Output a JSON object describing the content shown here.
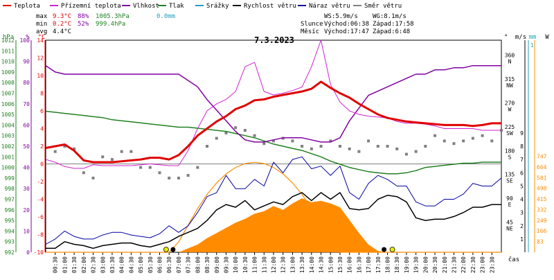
{
  "chart_data": {
    "type": "line",
    "title": "7.3.2023",
    "legend": [
      {
        "label": "Teplota",
        "color": "#e00000"
      },
      {
        "label": "Přízemní teplota",
        "color": "#d020d0"
      },
      {
        "label": "Vlhkost",
        "color": "#8000a0"
      },
      {
        "label": "Tlak",
        "color": "#208020"
      },
      {
        "label": "Srážky",
        "color": "#20a0c0"
      },
      {
        "label": "Rychlost větru",
        "color": "#000000"
      },
      {
        "label": "Náraz větru",
        "color": "#0000a0"
      },
      {
        "label": "Směr větru",
        "color": "#808080"
      }
    ],
    "stats": {
      "labels": [
        "max",
        "min",
        "avg"
      ],
      "temp": [
        "9.3°C",
        "0.2°C",
        "4.4°C"
      ],
      "humidity": [
        "88%",
        "52%",
        ""
      ],
      "pressure": [
        "1005.3hPa",
        "999.4hPa",
        ""
      ],
      "precip": [
        "0.0mm",
        "",
        ""
      ]
    },
    "info": {
      "ws": "WS:5.9m/s",
      "wg": "WG:8.1m/s",
      "sun_label": "Slunce",
      "sunrise": "Východ:06:38",
      "sunset": "Západ:17:58",
      "moon_label": "Měsíc",
      "moonrise": "Východ:17:47",
      "moonset": "Západ:6:48"
    },
    "axes": {
      "hpa": {
        "label": "hPa",
        "ticks": [
          "1012",
          "1011",
          "1010",
          "1009",
          "1008",
          "1007",
          "1006",
          "1005",
          "1004",
          "1003",
          "1002",
          "1001",
          "1000",
          "999",
          "998",
          "997",
          "996",
          "995",
          "994",
          "993",
          "992"
        ],
        "range": [
          992,
          1012
        ],
        "color": "#208020"
      },
      "pct": {
        "label": "%",
        "ticks": [
          "100",
          "90",
          "80",
          "70",
          "60",
          "50",
          "40",
          "30",
          "20",
          "10",
          "0"
        ],
        "range": [
          0,
          100
        ],
        "color": "#8000a0"
      },
      "temp": {
        "label": "°C",
        "ticks": [
          "14",
          "12",
          "10",
          "8",
          "6",
          "4",
          "2",
          "0",
          "-2",
          "-4",
          "-6",
          "-8",
          "-10"
        ],
        "range": [
          -10,
          14
        ],
        "color": "#e00000"
      },
      "dir": {
        "label": "°",
        "ticks": [
          {
            "deg": "360",
            "dir": "N"
          },
          {
            "deg": "315",
            "dir": "NW"
          },
          {
            "deg": "270",
            "dir": "W"
          },
          {
            "deg": "225",
            "dir": "SW"
          },
          {
            "deg": "180",
            "dir": "S"
          },
          {
            "deg": "135",
            "dir": "SE"
          },
          {
            "deg": "90",
            "dir": "E"
          },
          {
            "deg": "45",
            "dir": "NE"
          }
        ]
      },
      "wind": {
        "label": "m/s",
        "ticks": [
          "9",
          "8",
          "7",
          "6",
          "5",
          "4",
          "3",
          "2",
          "1"
        ],
        "range": [
          0,
          9
        ],
        "color": "#000000"
      },
      "precip_axis": {
        "label": "mm",
        "top": "1",
        "color": "#20a0c0"
      },
      "solar": {
        "label": "W",
        "ticks": [
          "747",
          "664",
          "581",
          "498",
          "415",
          "332",
          "249",
          "166",
          "83"
        ],
        "range": [
          0,
          830
        ],
        "color": "#ff8c00"
      },
      "x": {
        "label": "čas",
        "ticks": [
          "00:30",
          "01:00",
          "01:30",
          "02:00",
          "02:30",
          "03:00",
          "03:30",
          "04:00",
          "04:30",
          "05:00",
          "05:30",
          "06:00",
          "06:30",
          "07:00",
          "07:30",
          "08:00",
          "08:30",
          "09:00",
          "09:30",
          "10:00",
          "10:30",
          "11:00",
          "11:30",
          "12:00",
          "12:30",
          "13:00",
          "13:30",
          "14:00",
          "14:30",
          "15:00",
          "15:30",
          "16:00",
          "16:30",
          "17:00",
          "17:30",
          "18:00",
          "18:30",
          "19:00",
          "19:30",
          "20:00",
          "20:30",
          "21:00",
          "21:30",
          "22:00",
          "22:30",
          "23:00",
          "23:30"
        ]
      }
    },
    "series": {
      "hours": [
        0,
        0.5,
        1,
        1.5,
        2,
        2.5,
        3,
        3.5,
        4,
        4.5,
        5,
        5.5,
        6,
        6.5,
        7,
        7.5,
        8,
        8.5,
        9,
        9.5,
        10,
        10.5,
        11,
        11.5,
        12,
        12.5,
        13,
        13.5,
        14,
        14.5,
        15,
        15.5,
        16,
        16.5,
        17,
        17.5,
        18,
        18.5,
        19,
        19.5,
        20,
        20.5,
        21,
        21.5,
        22,
        22.5,
        23,
        23.5,
        24
      ],
      "temperature": [
        1.8,
        2.0,
        2.2,
        1.5,
        0.4,
        0.2,
        0.2,
        0.2,
        0.3,
        0.4,
        0.5,
        0.7,
        0.7,
        0.5,
        1.0,
        2.0,
        3.2,
        4.0,
        4.8,
        5.4,
        6.2,
        6.6,
        7.2,
        7.3,
        7.6,
        7.8,
        8.0,
        8.2,
        8.5,
        9.3,
        8.6,
        8.0,
        7.5,
        6.8,
        6.2,
        5.6,
        5.2,
        5.0,
        4.8,
        4.7,
        4.6,
        4.5,
        4.4,
        4.4,
        4.4,
        4.3,
        4.4,
        4.6,
        4.6
      ],
      "ground_temperature": [
        0.5,
        0.2,
        -0.3,
        -0.5,
        -0.5,
        -0.1,
        -0.2,
        -0.2,
        -0.2,
        -0.2,
        -0.1,
        0.0,
        -0.1,
        -0.2,
        -0.2,
        1.5,
        4.0,
        6.0,
        6.8,
        7.3,
        8.2,
        11.0,
        11.5,
        8.2,
        7.8,
        8.0,
        8.3,
        8.7,
        11.0,
        14.0,
        9.0,
        7.0,
        6.0,
        5.6,
        5.4,
        5.3,
        5.2,
        4.8,
        4.6,
        4.6,
        4.5,
        4.3,
        4.0,
        4.0,
        4.0,
        4.0,
        3.8,
        3.8,
        3.8
      ],
      "humidity": [
        88,
        85,
        84,
        84,
        84,
        84,
        84,
        84,
        84,
        84,
        84,
        84,
        84,
        84,
        84,
        81,
        78,
        72,
        67,
        62,
        57,
        53,
        52,
        52,
        53,
        54,
        54,
        54,
        53,
        52,
        52,
        54,
        62,
        68,
        74,
        76,
        78,
        80,
        82,
        84,
        84,
        86,
        86,
        87,
        87,
        88,
        88,
        88,
        88
      ],
      "pressure": [
        1005.3,
        1005.2,
        1005.1,
        1005.0,
        1004.9,
        1004.8,
        1004.7,
        1004.5,
        1004.4,
        1004.3,
        1004.2,
        1004.1,
        1004.0,
        1003.9,
        1003.8,
        1003.8,
        1003.7,
        1003.6,
        1003.5,
        1003.4,
        1003.2,
        1003.0,
        1002.8,
        1002.5,
        1002.2,
        1002.0,
        1001.8,
        1001.6,
        1001.3,
        1001.0,
        1000.6,
        1000.3,
        1000.0,
        999.8,
        999.6,
        999.5,
        999.4,
        999.4,
        999.5,
        999.7,
        1000.0,
        1000.1,
        1000.2,
        1000.3,
        1000.4,
        1000.4,
        1000.5,
        1000.5,
        1000.5
      ],
      "wind_speed": [
        0.3,
        0.3,
        0.8,
        0.6,
        0.5,
        0.3,
        0.5,
        0.6,
        0.7,
        0.7,
        0.5,
        0.4,
        0.6,
        0.8,
        1.2,
        1.5,
        1.8,
        2.4,
        3.2,
        3.6,
        3.4,
        3.9,
        3.2,
        3.5,
        3.8,
        3.6,
        4.2,
        4.5,
        3.9,
        4.5,
        4.0,
        4.5,
        3.3,
        3.2,
        3.3,
        4.0,
        4.3,
        4.2,
        3.8,
        2.6,
        2.4,
        2.5,
        2.5,
        2.7,
        3.0,
        3.4,
        3.4,
        3.6,
        3.6
      ],
      "wind_gust": [
        0.6,
        1.0,
        1.6,
        1.2,
        1.0,
        1.0,
        1.3,
        1.5,
        1.5,
        1.3,
        1.2,
        1.1,
        1.4,
        2.0,
        1.5,
        2.0,
        3.0,
        4.2,
        4.5,
        5.8,
        4.8,
        4.8,
        5.5,
        5.0,
        6.8,
        6.0,
        7.0,
        7.2,
        6.3,
        6.5,
        5.8,
        6.5,
        4.5,
        4.0,
        5.2,
        5.8,
        5.5,
        5.0,
        5.0,
        3.8,
        3.5,
        3.5,
        4.0,
        4.0,
        4.4,
        5.2,
        5.0,
        5.0,
        5.6
      ],
      "wind_direction": [
        0,
        190,
        200,
        195,
        150,
        140,
        180,
        175,
        190,
        190,
        160,
        160,
        150,
        140,
        140,
        145,
        160,
        200,
        215,
        225,
        235,
        230,
        220,
        205,
        210,
        215,
        210,
        200,
        195,
        200,
        210,
        200,
        195,
        190,
        210,
        200,
        200,
        195,
        185,
        190,
        200,
        220,
        210,
        205,
        210,
        215,
        220,
        210,
        230
      ],
      "solar_radiation": [
        0,
        0,
        0,
        0,
        0,
        0,
        0,
        0,
        0,
        0,
        0,
        0,
        0,
        0,
        0,
        30,
        60,
        110,
        150,
        190,
        230,
        260,
        300,
        320,
        360,
        330,
        380,
        420,
        390,
        400,
        380,
        350,
        250,
        150,
        60,
        10,
        0,
        0,
        0,
        0,
        0,
        0,
        0,
        0,
        0,
        0,
        0,
        0,
        0
      ],
      "theoretical_solar": [
        0,
        0,
        0,
        0,
        0,
        0,
        0,
        0,
        0,
        0,
        0,
        0,
        0,
        0,
        80,
        210,
        340,
        450,
        540,
        610,
        660,
        690,
        700,
        690,
        660,
        610,
        540,
        450,
        340,
        210,
        80,
        0,
        0,
        0,
        0,
        0,
        0,
        0,
        0,
        0,
        0,
        0,
        0,
        0,
        0,
        0,
        0,
        0,
        0
      ]
    }
  }
}
